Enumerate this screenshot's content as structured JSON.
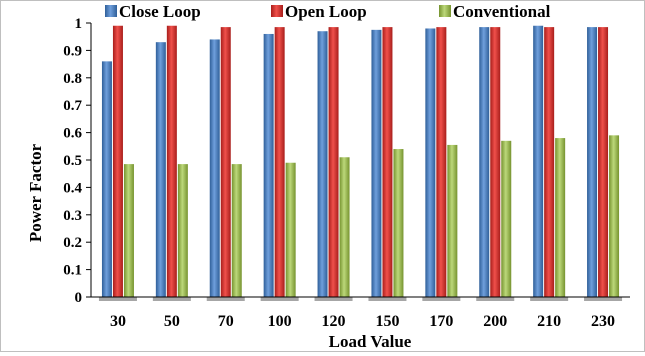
{
  "chart_data": {
    "type": "bar",
    "title": "",
    "xlabel": "Load Value",
    "ylabel": "Power Factor",
    "categories": [
      "30",
      "50",
      "70",
      "100",
      "120",
      "150",
      "170",
      "200",
      "210",
      "230"
    ],
    "ylim": [
      0,
      1
    ],
    "yticks": [
      "0",
      "0.1",
      "0.2",
      "0.3",
      "0.4",
      "0.5",
      "0.6",
      "0.7",
      "0.8",
      "0.9",
      "1"
    ],
    "legend_position": "top",
    "grid": false,
    "series": [
      {
        "name": "Close Loop",
        "color": "#4a7ebb",
        "values": [
          0.86,
          0.93,
          0.94,
          0.96,
          0.97,
          0.975,
          0.98,
          0.985,
          0.99,
          0.985
        ]
      },
      {
        "name": "Open Loop",
        "color": "#d3302c",
        "values": [
          0.99,
          0.99,
          0.985,
          0.985,
          0.985,
          0.985,
          0.985,
          0.985,
          0.985,
          0.985
        ]
      },
      {
        "name": "Conventional",
        "color": "#9bbb59",
        "values": [
          0.485,
          0.485,
          0.485,
          0.49,
          0.51,
          0.54,
          0.555,
          0.57,
          0.58,
          0.59
        ]
      }
    ]
  }
}
